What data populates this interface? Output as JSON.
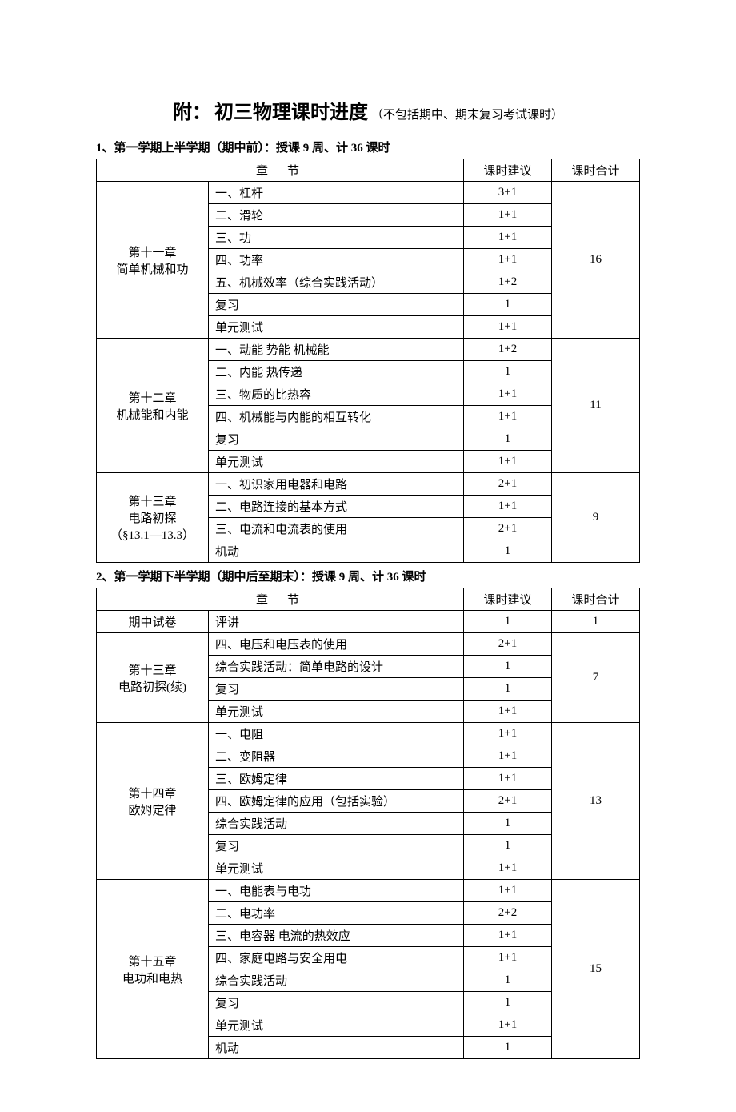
{
  "title": {
    "prefix": "附：",
    "main": "初三物理课时进度",
    "sub": "（不包括期中、期末复习考试课时）"
  },
  "section1": {
    "heading": "1、第一学期上半学期（期中前）：授课 9 周、计 36 课时",
    "headers": {
      "zhangjie": "章节",
      "suggest": "课时建议",
      "total": "课时合计"
    },
    "groups": [
      {
        "chapter": "第十一章\n简单机械和功",
        "total": "16",
        "rows": [
          {
            "section": "一、杠杆",
            "suggest": "3+1"
          },
          {
            "section": "二、滑轮",
            "suggest": "1+1"
          },
          {
            "section": "三、功",
            "suggest": "1+1"
          },
          {
            "section": "四、功率",
            "suggest": "1+1"
          },
          {
            "section": "五、机械效率（综合实践活动）",
            "suggest": "1+2"
          },
          {
            "section": "复习",
            "suggest": "1"
          },
          {
            "section": "单元测试",
            "suggest": "1+1"
          }
        ]
      },
      {
        "chapter": "第十二章\n机械能和内能",
        "total": "11",
        "rows": [
          {
            "section": "一、动能 势能 机械能",
            "suggest": "1+2"
          },
          {
            "section": "二、内能 热传递",
            "suggest": "1"
          },
          {
            "section": "三、物质的比热容",
            "suggest": "1+1"
          },
          {
            "section": "四、机械能与内能的相互转化",
            "suggest": "1+1"
          },
          {
            "section": "复习",
            "suggest": "1"
          },
          {
            "section": "单元测试",
            "suggest": "1+1"
          }
        ]
      },
      {
        "chapter": "第十三章\n电路初探\n（§13.1—13.3）",
        "total": "9",
        "rows": [
          {
            "section": "一、初识家用电器和电路",
            "suggest": "2+1"
          },
          {
            "section": "二、电路连接的基本方式",
            "suggest": "1+1"
          },
          {
            "section": "三、电流和电流表的使用",
            "suggest": "2+1"
          },
          {
            "section": "机动",
            "suggest": "1"
          }
        ]
      }
    ]
  },
  "section2": {
    "heading": "2、第一学期下半学期（期中后至期末）：授课 9 周、计 36 课时",
    "headers": {
      "zhangjie": "章节",
      "suggest": "课时建议",
      "total": "课时合计"
    },
    "groups": [
      {
        "chapter": "期中试卷",
        "total": "1",
        "rows": [
          {
            "section": "评讲",
            "suggest": "1"
          }
        ]
      },
      {
        "chapter": "第十三章\n电路初探(续)",
        "total": "7",
        "rows": [
          {
            "section": "四、电压和电压表的使用",
            "suggest": "2+1"
          },
          {
            "section": "综合实践活动：简单电路的设计",
            "suggest": "1"
          },
          {
            "section": "复习",
            "suggest": "1"
          },
          {
            "section": "单元测试",
            "suggest": "1+1"
          }
        ]
      },
      {
        "chapter": "第十四章\n欧姆定律",
        "total": "13",
        "rows": [
          {
            "section": "一、电阻",
            "suggest": "1+1"
          },
          {
            "section": "二、变阻器",
            "suggest": "1+1"
          },
          {
            "section": "三、欧姆定律",
            "suggest": "1+1"
          },
          {
            "section": "四、欧姆定律的应用（包括实验）",
            "suggest": "2+1"
          },
          {
            "section": "综合实践活动",
            "suggest": "1"
          },
          {
            "section": "复习",
            "suggest": "1"
          },
          {
            "section": "单元测试",
            "suggest": "1+1"
          }
        ]
      },
      {
        "chapter": "第十五章\n电功和电热",
        "total": "15",
        "rows": [
          {
            "section": "一、电能表与电功",
            "suggest": "1+1"
          },
          {
            "section": "二、电功率",
            "suggest": "2+2"
          },
          {
            "section": "三、电容器 电流的热效应",
            "suggest": "1+1"
          },
          {
            "section": "四、家庭电路与安全用电",
            "suggest": "1+1"
          },
          {
            "section": "综合实践活动",
            "suggest": "1"
          },
          {
            "section": "复习",
            "suggest": "1"
          },
          {
            "section": "单元测试",
            "suggest": "1+1"
          },
          {
            "section": "机动",
            "suggest": "1"
          }
        ]
      }
    ]
  }
}
